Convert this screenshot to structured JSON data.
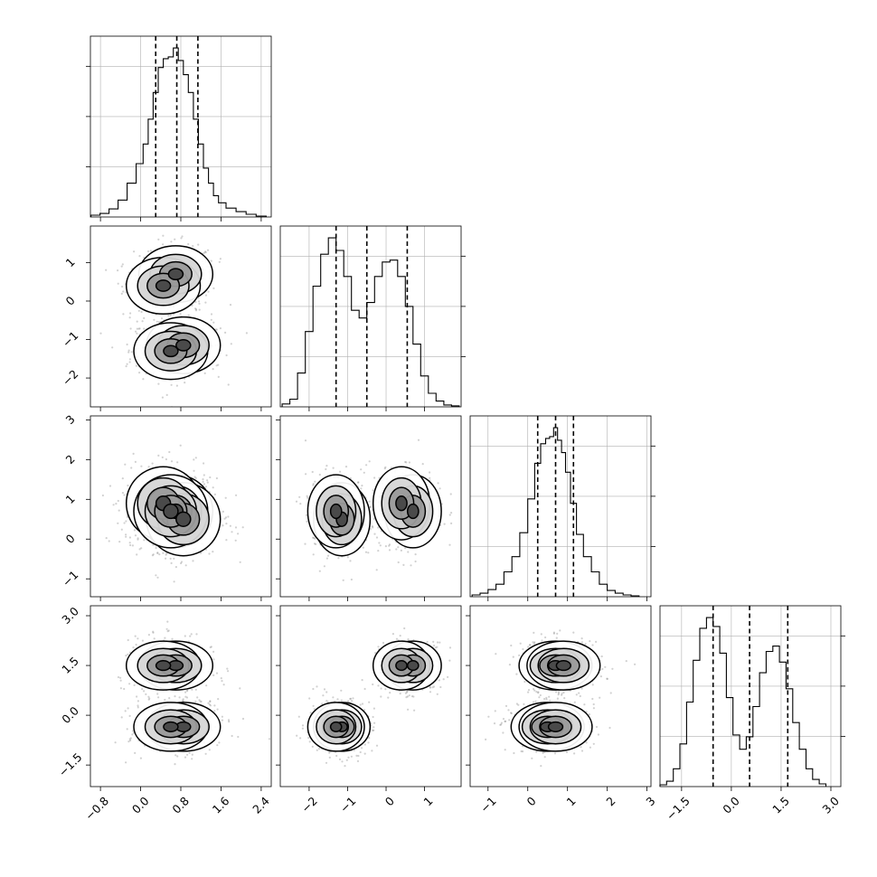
{
  "chart_data": {
    "type": "corner",
    "n_params": 4,
    "grid": true,
    "parameters": [
      {
        "index": 0,
        "range": [
          -1.0,
          2.6
        ],
        "ticks": [
          -0.8,
          0.0,
          0.8,
          1.6,
          2.4
        ],
        "tick_labels": [
          "−0.8",
          "0.0",
          "0.8",
          "1.6",
          "2.4"
        ]
      },
      {
        "index": 1,
        "range": [
          -2.75,
          1.95
        ],
        "ticks": [
          -2,
          -1,
          0,
          1
        ],
        "tick_labels": [
          "−2",
          "−1",
          "0",
          "1"
        ]
      },
      {
        "index": 2,
        "range": [
          -1.45,
          3.1
        ],
        "ticks": [
          -1,
          0,
          1,
          2,
          3
        ],
        "tick_labels": [
          "−1",
          "0",
          "1",
          "2",
          "3"
        ]
      },
      {
        "index": 3,
        "range": [
          -2.15,
          3.3
        ],
        "ticks": [
          -1.5,
          0.0,
          1.5,
          3.0
        ],
        "tick_labels": [
          "−1.5",
          "0.0",
          "1.5",
          "3.0"
        ]
      }
    ],
    "histograms": [
      {
        "param": 0,
        "quantiles": [
          0.3,
          0.72,
          1.14
        ],
        "x": [
          -0.9,
          -0.72,
          -0.54,
          -0.36,
          -0.18,
          0.0,
          0.1,
          0.2,
          0.3,
          0.4,
          0.5,
          0.6,
          0.7,
          0.8,
          0.9,
          1.0,
          1.1,
          1.2,
          1.3,
          1.4,
          1.5,
          1.6,
          1.8,
          2.0,
          2.2,
          2.4
        ],
        "counts": [
          2,
          4,
          9,
          19,
          38,
          60,
          82,
          110,
          140,
          168,
          178,
          180,
          190,
          176,
          160,
          140,
          110,
          82,
          55,
          38,
          24,
          16,
          10,
          6,
          3,
          1
        ]
      },
      {
        "param": 1,
        "quantiles": [
          -1.3,
          -0.5,
          0.55
        ],
        "x": [
          -2.6,
          -2.4,
          -2.2,
          -2.0,
          -1.8,
          -1.6,
          -1.4,
          -1.2,
          -1.0,
          -0.8,
          -0.6,
          -0.4,
          -0.2,
          0.0,
          0.2,
          0.4,
          0.6,
          0.8,
          1.0,
          1.2,
          1.4,
          1.6,
          1.8
        ],
        "counts": [
          3,
          8,
          35,
          78,
          125,
          158,
          175,
          162,
          135,
          100,
          92,
          108,
          135,
          150,
          152,
          135,
          104,
          65,
          32,
          14,
          6,
          2,
          1
        ]
      },
      {
        "param": 2,
        "quantiles": [
          0.25,
          0.7,
          1.15
        ],
        "x": [
          -1.3,
          -1.1,
          -0.9,
          -0.7,
          -0.5,
          -0.3,
          -0.1,
          0.1,
          0.25,
          0.4,
          0.5,
          0.6,
          0.7,
          0.8,
          0.9,
          1.0,
          1.15,
          1.3,
          1.5,
          1.7,
          1.9,
          2.1,
          2.3,
          2.5,
          2.7
        ],
        "counts": [
          2,
          4,
          8,
          14,
          28,
          45,
          72,
          110,
          150,
          172,
          178,
          180,
          190,
          176,
          162,
          140,
          105,
          70,
          45,
          28,
          14,
          7,
          4,
          2,
          1
        ]
      },
      {
        "param": 3,
        "quantiles": [
          -0.55,
          0.55,
          1.7
        ],
        "x": [
          -2.05,
          -1.85,
          -1.65,
          -1.45,
          -1.25,
          -1.05,
          -0.85,
          -0.65,
          -0.45,
          -0.25,
          -0.05,
          0.15,
          0.35,
          0.55,
          0.75,
          0.95,
          1.15,
          1.35,
          1.55,
          1.75,
          1.95,
          2.15,
          2.35,
          2.55,
          2.75
        ],
        "counts": [
          2,
          6,
          20,
          48,
          95,
          142,
          178,
          190,
          180,
          150,
          100,
          58,
          42,
          56,
          90,
          128,
          152,
          158,
          140,
          110,
          72,
          42,
          20,
          8,
          3
        ]
      }
    ],
    "modes": [
      [
        0.7,
        0.7,
        0.7,
        1.5
      ],
      [
        0.45,
        0.4,
        0.9,
        1.5
      ],
      [
        0.85,
        -1.15,
        0.5,
        -0.35
      ],
      [
        0.6,
        -1.3,
        0.7,
        -0.35
      ]
    ],
    "contour_levels": 4
  }
}
